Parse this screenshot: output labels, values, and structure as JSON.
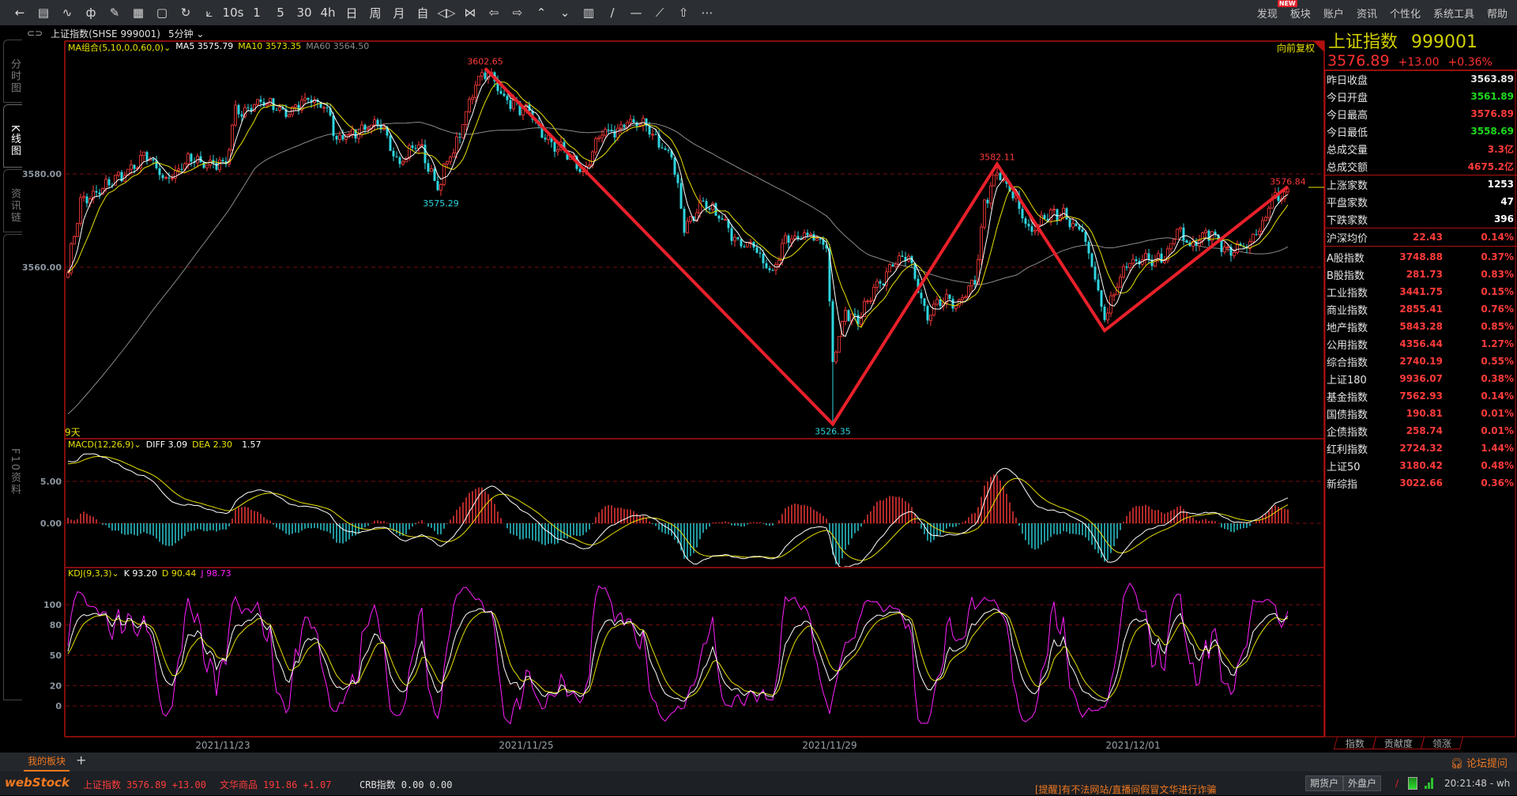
{
  "toolbar": {
    "icons": [
      "back-arrow-icon",
      "list-icon",
      "line-chart-icon",
      "candlestick-icon",
      "brush-icon",
      "grid-icon",
      "save-icon",
      "refresh-icon",
      "draw-tool-icon"
    ],
    "icon_glyphs": [
      "←",
      "▤",
      "∿",
      "ф",
      "✎",
      "▦",
      "▢",
      "↻",
      "⟀"
    ],
    "periods": [
      "10s",
      "1",
      "5",
      "30",
      "4h",
      "日",
      "周",
      "月",
      "自"
    ],
    "right_icons": [
      "◁▷",
      "⋈",
      "⇦",
      "⇨",
      "⌃",
      "⌄",
      "▥",
      "∕",
      "—",
      "⟋",
      "⇧",
      "⋯"
    ],
    "right_icon_names": [
      "zoom-icon",
      "compress-icon",
      "prev-icon",
      "next-icon",
      "up-icon",
      "down-icon",
      "layout-icon",
      "line-tool-icon",
      "hline-icon",
      "ray-icon",
      "shift-up-icon",
      "more-icon"
    ]
  },
  "menu": {
    "items": [
      "发现",
      "板块",
      "账户",
      "资讯",
      "个性化",
      "系统工具",
      "帮助"
    ],
    "new_badge": "NEW"
  },
  "title": {
    "symbol": "上证指数(SHSE 999001)",
    "period": "5分钟"
  },
  "sidebar": {
    "tabs": [
      "分时图",
      "K线图",
      "资讯链",
      "F10资料"
    ],
    "active": 1
  },
  "main_legend": {
    "ma_label": "MA组合(5,10,0,0,60,0)",
    "ma5": "MA5 3575.79",
    "ma10": "MA10 3573.35",
    "ma60": "MA60 3564.50",
    "adjust": "向前复权",
    "days": "9天"
  },
  "macd_legend": {
    "label": "MACD(12,26,9)",
    "diff": "DIFF 3.09",
    "dea": "DEA 2.30",
    "macd": "1.57"
  },
  "kdj_legend": {
    "label": "KDJ(9,3,3)",
    "k": "K 93.20",
    "d": "D 90.44",
    "j": "J 98.73"
  },
  "colors": {
    "up": "#ff3b3b",
    "down": "#2fd6e0",
    "frame": "#b01010",
    "zigzag": "#e8202a",
    "ma5": "#ffffff",
    "ma10": "#e8e000",
    "ma60": "#8a8a8a",
    "k": "#ffffff",
    "d": "#e8e000",
    "j": "#ff20ff"
  },
  "chart_data": {
    "type": "candlestick",
    "bars": 387,
    "price_axis": {
      "ticks": [
        "3580.00",
        "3560.00"
      ],
      "values": [
        3580,
        3560
      ]
    },
    "macd_axis": {
      "ticks": [
        "5.00",
        "0.00"
      ],
      "values": [
        5,
        0
      ]
    },
    "kdj_axis": {
      "ticks": [
        "100",
        "80",
        "50",
        "20",
        "0"
      ],
      "values": [
        100,
        80,
        50,
        20,
        0
      ]
    },
    "x_ticks": [
      {
        "bar": 49,
        "label": "2021/11/23"
      },
      {
        "bar": 145,
        "label": "2021/11/25"
      },
      {
        "bar": 241,
        "label": "2021/11/29"
      },
      {
        "bar": 337,
        "label": "2021/12/01"
      }
    ],
    "close_path": [
      [
        0,
        3559.6
      ],
      [
        4,
        3573.6
      ],
      [
        10,
        3576.7
      ],
      [
        16,
        3578.8
      ],
      [
        24,
        3583.9
      ],
      [
        30,
        3578.8
      ],
      [
        36,
        3581.9
      ],
      [
        44,
        3582.9
      ],
      [
        50,
        3581.9
      ],
      [
        53,
        3593.2
      ],
      [
        59,
        3595.3
      ],
      [
        65,
        3594.2
      ],
      [
        71,
        3593.2
      ],
      [
        77,
        3596.3
      ],
      [
        82,
        3594.2
      ],
      [
        85,
        3587.0
      ],
      [
        93,
        3590.1
      ],
      [
        100,
        3589.1
      ],
      [
        105,
        3582.9
      ],
      [
        111,
        3586.0
      ],
      [
        117,
        3577.7
      ],
      [
        123,
        3586.0
      ],
      [
        129,
        3600.4
      ],
      [
        132,
        3601.5
      ],
      [
        139,
        3596.3
      ],
      [
        146,
        3592.2
      ],
      [
        154,
        3586.0
      ],
      [
        163,
        3580.8
      ],
      [
        169,
        3588.0
      ],
      [
        177,
        3591.1
      ],
      [
        183,
        3590.1
      ],
      [
        191,
        3583.9
      ],
      [
        195,
        3568.5
      ],
      [
        200,
        3573.6
      ],
      [
        206,
        3570.5
      ],
      [
        212,
        3566.4
      ],
      [
        218,
        3563.3
      ],
      [
        223,
        3559.2
      ],
      [
        227,
        3565.4
      ],
      [
        235,
        3567.4
      ],
      [
        240,
        3564.3
      ],
      [
        242,
        3539.6
      ],
      [
        246,
        3550.9
      ],
      [
        250,
        3548.9
      ],
      [
        255,
        3555.1
      ],
      [
        261,
        3560.2
      ],
      [
        266,
        3562.3
      ],
      [
        272,
        3548.9
      ],
      [
        276,
        3552.0
      ],
      [
        282,
        3553.0
      ],
      [
        287,
        3556.1
      ],
      [
        290,
        3573.6
      ],
      [
        294,
        3580.8
      ],
      [
        299,
        3574.6
      ],
      [
        304,
        3568.5
      ],
      [
        310,
        3570.5
      ],
      [
        316,
        3571.5
      ],
      [
        321,
        3567.4
      ],
      [
        325,
        3557.1
      ],
      [
        328,
        3549.9
      ],
      [
        334,
        3559.2
      ],
      [
        341,
        3562.3
      ],
      [
        347,
        3561.3
      ],
      [
        351,
        3568.5
      ],
      [
        356,
        3564.3
      ],
      [
        362,
        3567.4
      ],
      [
        368,
        3562.3
      ],
      [
        374,
        3565.4
      ],
      [
        380,
        3572.6
      ],
      [
        386,
        3576.7
      ]
    ],
    "high_marks": [
      {
        "bar": 132,
        "price": 3602.65,
        "label": "3602.65"
      },
      {
        "bar": 294,
        "price": 3582.11,
        "label": "3582.11"
      },
      {
        "bar": 386,
        "price": 3576.84,
        "label": "3576.84"
      }
    ],
    "low_marks": [
      {
        "bar": 118,
        "price": 3575.29,
        "label": "3575.29"
      },
      {
        "bar": 242,
        "price": 3526.35,
        "label": "3526.35"
      }
    ],
    "zigzag": [
      [
        132,
        3602.65
      ],
      [
        242,
        3526.35
      ],
      [
        294,
        3582.11
      ],
      [
        328,
        3546.4
      ],
      [
        386,
        3577.3
      ]
    ]
  },
  "quote": {
    "name": "上证指数",
    "code": "999001",
    "price": "3576.89",
    "change": "+13.00",
    "pct": "+0.36%"
  },
  "stats": [
    {
      "label": "昨日收盘",
      "value": "3563.89",
      "color": "#e6e6e6"
    },
    {
      "label": "今日开盘",
      "value": "3561.89",
      "color": "#1ed81e"
    },
    {
      "label": "今日最高",
      "value": "3576.89",
      "color": "#ff3b3b"
    },
    {
      "label": "今日最低",
      "value": "3558.69",
      "color": "#1ed81e"
    },
    {
      "label": "总成交量",
      "value": "3.3亿",
      "color": "#ff3b3b"
    },
    {
      "label": "总成交额",
      "value": "4675.2亿",
      "color": "#ff3b3b"
    }
  ],
  "breadth": [
    {
      "label": "上涨家数",
      "value": "1253"
    },
    {
      "label": "平盘家数",
      "value": "47"
    },
    {
      "label": "下跌家数",
      "value": "396"
    }
  ],
  "avg": {
    "label": "沪深均价",
    "value": "22.43",
    "pct": "0.14%"
  },
  "indices": [
    {
      "label": "A股指数",
      "value": "3748.88",
      "pct": "0.37%"
    },
    {
      "label": "B股指数",
      "value": "281.73",
      "pct": "0.83%"
    },
    {
      "label": "工业指数",
      "value": "3441.75",
      "pct": "0.15%"
    },
    {
      "label": "商业指数",
      "value": "2855.41",
      "pct": "0.76%"
    },
    {
      "label": "地产指数",
      "value": "5843.28",
      "pct": "0.85%"
    },
    {
      "label": "公用指数",
      "value": "4356.44",
      "pct": "1.27%"
    },
    {
      "label": "综合指数",
      "value": "2740.19",
      "pct": "0.55%"
    },
    {
      "label": "上证180",
      "value": "9936.07",
      "pct": "0.38%"
    },
    {
      "label": "基金指数",
      "value": "7562.93",
      "pct": "0.14%"
    },
    {
      "label": "国债指数",
      "value": "190.81",
      "pct": "0.01%"
    },
    {
      "label": "企债指数",
      "value": "258.74",
      "pct": "0.01%"
    },
    {
      "label": "红利指数",
      "value": "2724.32",
      "pct": "1.44%"
    },
    {
      "label": "上证50",
      "value": "3180.42",
      "pct": "0.48%"
    },
    {
      "label": "新综指",
      "value": "3022.66",
      "pct": "0.36%"
    }
  ],
  "right_tabs": [
    "指数",
    "贡献度",
    "领涨"
  ],
  "tabbar": {
    "my_board": "我的板块",
    "add": "+",
    "forum": "论坛提问"
  },
  "status": {
    "logo": "webStock",
    "tickers": [
      {
        "name": "上证指数",
        "value": "3576.89",
        "change": "+13.00",
        "color": "#ff3b3b"
      },
      {
        "name": "文华商品",
        "value": "191.86",
        "change": "+1.07",
        "color": "#ff3b3b"
      },
      {
        "name": "CRB指数",
        "value": "0.00",
        "change": "0.00",
        "color": "#e0e0e0"
      }
    ],
    "notice": "[提醒]有不法网站/直播间假冒文华进行诈骗",
    "futures_btn": "期货户",
    "foreign_btn": "外盘户",
    "time": "20:21:48 - wh"
  }
}
